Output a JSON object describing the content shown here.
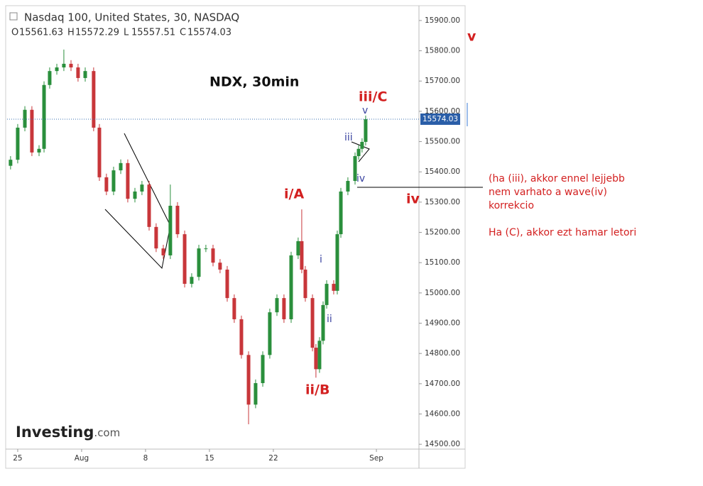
{
  "chart_data": {
    "type": "candlestick",
    "title": "Nasdaq 100, United States, 30, NASDAQ",
    "ohlc": [
      {
        "label": "O",
        "value": 15561.63
      },
      {
        "label": "H",
        "value": 15572.29
      },
      {
        "label": "L",
        "value": 15557.51
      },
      {
        "label": "C",
        "value": 15574.03
      }
    ],
    "x": [
      -0.56,
      0,
      0.56,
      1.11,
      1.67,
      2.06,
      2.5,
      3.06,
      3.61,
      4.17,
      4.72,
      5.28,
      5.94,
      6.39,
      6.94,
      7.5,
      8.06,
      8.61,
      9.17,
      9.72,
      10.28,
      10.83,
      11.39,
      11.94,
      12.5,
      13.06,
      13.61,
      14.17,
      14.72,
      15.28,
      15.83,
      16.39,
      16.94,
      17.5,
      18.06,
      18.61,
      19.17,
      19.72,
      20.28,
      20.83,
      21.39,
      21.94,
      22.22,
      22.5,
      23.06,
      23.33,
      23.61,
      23.89,
      24.17,
      24.72,
      25,
      25.28,
      25.83,
      26.39,
      26.67,
      26.94,
      27.22
    ],
    "open": [
      15420,
      15440,
      15546,
      15605,
      15464,
      15476,
      15687,
      15733,
      15745,
      15757,
      15745,
      15710,
      15733,
      15546,
      15382,
      15335,
      15405,
      15429,
      15311,
      15335,
      15358,
      15218,
      15147,
      15124,
      15288,
      15194,
      15030,
      15053,
      15147,
      15147,
      15100,
      15077,
      14983,
      14913,
      14795,
      14631,
      14702,
      14795,
      14936,
      14983,
      14913,
      15124,
      15171,
      15077,
      14983,
      14819,
      14748,
      14842,
      14960,
      15030,
      15007,
      15194,
      15335,
      15370,
      15452,
      15476,
      15499
    ],
    "high": [
      15452,
      15558,
      15617,
      15617,
      15488,
      15699,
      15745,
      15757,
      15804,
      15769,
      15757,
      15745,
      15745,
      15558,
      15394,
      15417,
      15441,
      15441,
      15347,
      15370,
      15370,
      15230,
      15159,
      15358,
      15300,
      15206,
      15065,
      15159,
      15159,
      15159,
      15112,
      15089,
      14995,
      14925,
      14807,
      14714,
      14807,
      14948,
      14995,
      14995,
      15136,
      15183,
      15276,
      15089,
      14995,
      14831,
      14854,
      14972,
      15042,
      15042,
      15206,
      15347,
      15382,
      15464,
      15488,
      15511,
      15586
    ],
    "low": [
      15408,
      15428,
      15534,
      15452,
      15452,
      15464,
      15675,
      15721,
      15733,
      15733,
      15698,
      15698,
      15534,
      15370,
      15323,
      15323,
      15393,
      15299,
      15299,
      15323,
      15206,
      15135,
      15112,
      15112,
      15182,
      15018,
      15018,
      15041,
      15135,
      15088,
      15065,
      14971,
      14901,
      14783,
      14566,
      14619,
      14690,
      14783,
      14924,
      14901,
      14901,
      15112,
      15065,
      14971,
      14807,
      14720,
      14736,
      14830,
      14948,
      14995,
      14995,
      15182,
      15323,
      15358,
      15440,
      15464,
      15487
    ],
    "close": [
      15440,
      15546,
      15605,
      15464,
      15476,
      15687,
      15733,
      15745,
      15757,
      15745,
      15710,
      15733,
      15546,
      15382,
      15335,
      15405,
      15429,
      15311,
      15335,
      15358,
      15218,
      15147,
      15124,
      15288,
      15194,
      15030,
      15053,
      15147,
      15147,
      15100,
      15077,
      14983,
      14913,
      14795,
      14631,
      14702,
      14795,
      14936,
      14983,
      14913,
      15124,
      15171,
      15077,
      14983,
      14819,
      14748,
      14842,
      14960,
      15030,
      15007,
      15194,
      15335,
      15370,
      15452,
      15476,
      15499,
      15574.03
    ],
    "up_color": "#2a8f3c",
    "down_color": "#c8363a",
    "xlim": [
      -0.83,
      31.39
    ],
    "xticks": [
      {
        "value": 0,
        "label": "25"
      },
      {
        "value": 5,
        "label": "Aug"
      },
      {
        "value": 10,
        "label": "8"
      },
      {
        "value": 15,
        "label": "15"
      },
      {
        "value": 20,
        "label": "22"
      },
      {
        "value": 28.06,
        "label": "Sep"
      }
    ],
    "ylim": [
      14484,
      15949
    ],
    "yticks": [
      {
        "value": 14500,
        "label": "14500.00"
      },
      {
        "value": 14600,
        "label": "14600.00"
      },
      {
        "value": 14700,
        "label": "14700.00"
      },
      {
        "value": 14800,
        "label": "14800.00"
      },
      {
        "value": 14900,
        "label": "14900.00"
      },
      {
        "value": 15000,
        "label": "15000.00"
      },
      {
        "value": 15100,
        "label": "15100.00"
      },
      {
        "value": 15200,
        "label": "15200.00"
      },
      {
        "value": 15300,
        "label": "15300.00"
      },
      {
        "value": 15400,
        "label": "15400.00"
      },
      {
        "value": 15500,
        "label": "15500.00"
      },
      {
        "value": 15600,
        "label": "15600.00"
      },
      {
        "value": 15700,
        "label": "15700.00"
      },
      {
        "value": 15800,
        "label": "15800.00"
      },
      {
        "value": 15900,
        "label": "15900.00"
      }
    ],
    "grid": false,
    "heading": "NDX, 30min",
    "waves": [
      "v",
      "iii/C",
      "v",
      "iii",
      "iv",
      "i/A",
      "iv",
      "i",
      "ii",
      "ii/B"
    ],
    "notes": [
      "(ha (iii), akkor ennel lejjebb",
      "nem varhato a wave(iv)",
      "korrekcio",
      "Ha (C), akkor ezt hamar letori"
    ],
    "brand": "Investing",
    "brand_suffix": ".com"
  }
}
